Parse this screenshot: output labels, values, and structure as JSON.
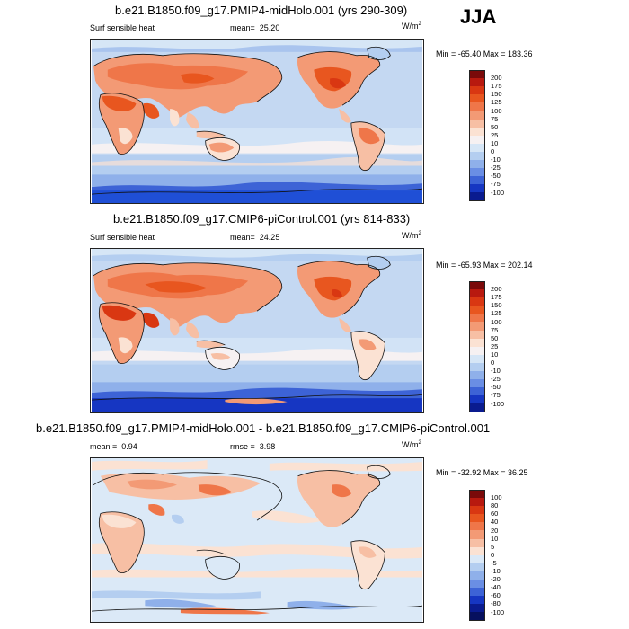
{
  "season": "JJA",
  "panels": [
    {
      "title": "b.e21.B1850.f09_g17.PMIP4-midHolo.001 (yrs 290-309)",
      "left_label": "Surf sensible heat",
      "stat_label": "mean=",
      "stat_value": "25.20",
      "unit_base": "W/m",
      "unit_sup": "2",
      "minmax": "Min = -65.40 Max = 183.36",
      "scheme": "full"
    },
    {
      "title": "b.e21.B1850.f09_g17.CMIP6-piControl.001 (yrs 814-833)",
      "left_label": "Surf sensible heat",
      "stat_label": "mean=",
      "stat_value": "24.25",
      "unit_base": "W/m",
      "unit_sup": "2",
      "minmax": "Min = -65.93 Max = 202.14",
      "scheme": "full"
    },
    {
      "title": "b.e21.B1850.f09_g17.PMIP4-midHolo.001 - b.e21.B1850.f09_g17.CMIP6-piControl.001",
      "left_label": "mean =",
      "left_value": "0.94",
      "stat_label": "rmse =",
      "stat_value": "3.98",
      "unit_base": "W/m",
      "unit_sup": "2",
      "minmax": "Min = -32.92 Max = 36.25",
      "scheme": "diff"
    }
  ],
  "colorbar_full": {
    "labels": [
      "200",
      "175",
      "150",
      "125",
      "100",
      "75",
      "50",
      "25",
      "10",
      "0",
      "-10",
      "-25",
      "-50",
      "-75",
      "-100"
    ],
    "colors": [
      "#7a0a0a",
      "#b8190f",
      "#d93712",
      "#e8561f",
      "#ef7649",
      "#f39a75",
      "#f7bfa4",
      "#fbe2d3",
      "#f6f1f2",
      "#d6e6f6",
      "#b4cef0",
      "#8fb0ea",
      "#6a8ee4",
      "#3d63d6",
      "#1636c2",
      "#0a1b8f"
    ]
  },
  "colorbar_diff": {
    "labels": [
      "100",
      "80",
      "60",
      "40",
      "20",
      "10",
      "5",
      "0",
      "-5",
      "-10",
      "-20",
      "-40",
      "-60",
      "-80",
      "-100"
    ],
    "colors": [
      "#7a0a0a",
      "#b8190f",
      "#d93712",
      "#e8561f",
      "#ef7649",
      "#f39a75",
      "#f7bfa4",
      "#fbe2d3",
      "#dbe9f7",
      "#b4cef0",
      "#8fb0ea",
      "#6a8ee4",
      "#3d63d6",
      "#1636c2",
      "#0a1b8f",
      "#06105e"
    ]
  }
}
